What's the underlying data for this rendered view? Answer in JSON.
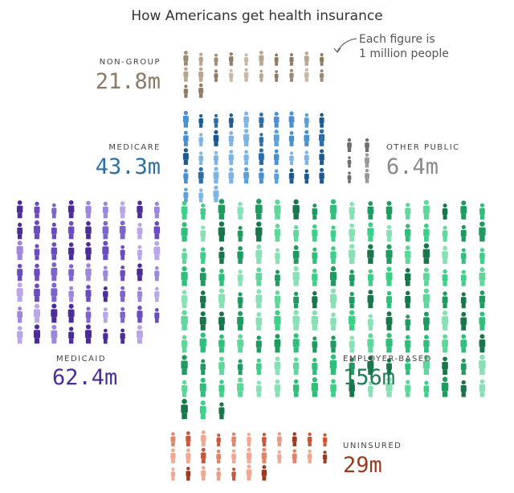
{
  "title": "How Americans get health insurance",
  "note_line1": "Each figure is",
  "note_line2": "1 million people",
  "colors": {
    "non_group": "#a8957e",
    "medicare": "#3a7fc1",
    "other_public": "#8a8a8a",
    "medicaid": "#6a4cc0",
    "employer": "#2fbf7a",
    "uninsured": "#d9735a"
  },
  "chart_data": {
    "type": "pictograph",
    "unit": "Each figure is 1 million people",
    "categories": [
      "NON-GROUP",
      "MEDICARE",
      "OTHER PUBLIC",
      "MEDICAID",
      "EMPLOYER-BASED",
      "UNINSURED"
    ],
    "values": [
      21.8,
      43.3,
      6.4,
      62.4,
      156,
      29
    ],
    "display_values": [
      "21.8m",
      "43.3m",
      "6.4m",
      "62.4m",
      "156m",
      "29m"
    ]
  }
}
